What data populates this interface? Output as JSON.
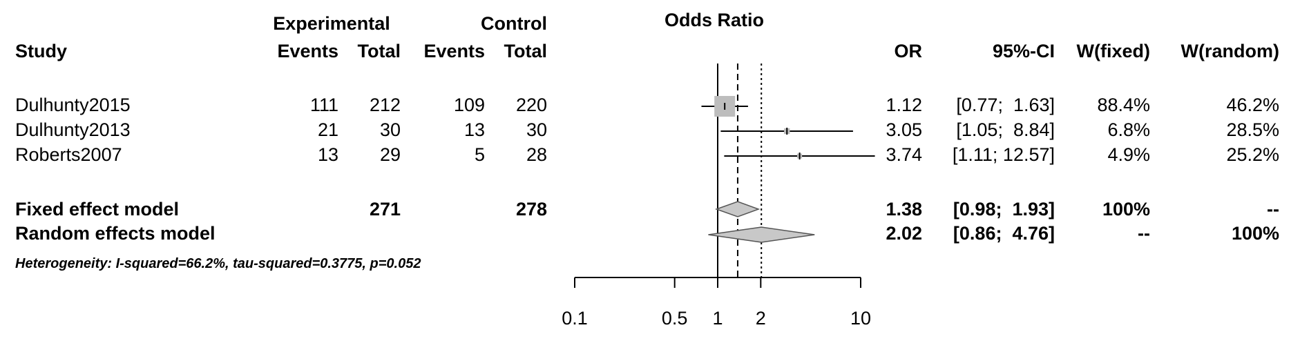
{
  "chart_data": {
    "type": "forest",
    "title": "Odds Ratio",
    "scale": "log",
    "xlim": [
      0.1,
      10
    ],
    "x_ticks": [
      0.1,
      0.5,
      1,
      2,
      10
    ],
    "x_tick_labels": [
      "0.1",
      "0.5",
      "1",
      "2",
      "10"
    ],
    "reference_line": 1,
    "fixed_line": 1.38,
    "random_line": 2.02,
    "group_headers": {
      "experimental": "Experimental",
      "control": "Control"
    },
    "columns": {
      "study": "Study",
      "exp_events": "Events",
      "exp_total": "Total",
      "ctl_events": "Events",
      "ctl_total": "Total",
      "or": "OR",
      "ci": "95%-CI",
      "w_fixed": "W(fixed)",
      "w_random": "W(random)"
    },
    "studies": [
      {
        "name": "Dulhunty2015",
        "exp_events": "111",
        "exp_total": "212",
        "ctl_events": "109",
        "ctl_total": "220",
        "or": 1.12,
        "lower": 0.77,
        "upper": 1.63,
        "or_text": "1.12",
        "ci_text": "[0.77;  1.63]",
        "w_fixed": "88.4%",
        "w_random": "46.2%",
        "weight_fixed": 88.4
      },
      {
        "name": "Dulhunty2013",
        "exp_events": "21",
        "exp_total": "30",
        "ctl_events": "13",
        "ctl_total": "30",
        "or": 3.05,
        "lower": 1.05,
        "upper": 8.84,
        "or_text": "3.05",
        "ci_text": "[1.05;  8.84]",
        "w_fixed": "6.8%",
        "w_random": "28.5%",
        "weight_fixed": 6.8
      },
      {
        "name": "Roberts2007",
        "exp_events": "13",
        "exp_total": "29",
        "ctl_events": "5",
        "ctl_total": "28",
        "or": 3.74,
        "lower": 1.11,
        "upper": 12.57,
        "or_text": "3.74",
        "ci_text": "[1.11; 12.57]",
        "w_fixed": "4.9%",
        "w_random": "25.2%",
        "weight_fixed": 4.9
      }
    ],
    "fixed": {
      "name": "Fixed effect model",
      "exp_total": "271",
      "ctl_total": "278",
      "or": 1.38,
      "lower": 0.98,
      "upper": 1.93,
      "or_text": "1.38",
      "ci_text": "[0.98;  1.93]",
      "w_fixed": "100%",
      "w_random": "--"
    },
    "random": {
      "name": "Random effects model",
      "or": 2.02,
      "lower": 0.86,
      "upper": 4.76,
      "or_text": "2.02",
      "ci_text": "[0.86;  4.76]",
      "w_fixed": "--",
      "w_random": "100%"
    },
    "heterogeneity": "Heterogeneity: I-squared=66.2%, tau-squared=0.3775, p=0.052",
    "colors": {
      "box": "#bdbdbd",
      "diamond": "#c8c8c8",
      "line": "#000000"
    }
  }
}
